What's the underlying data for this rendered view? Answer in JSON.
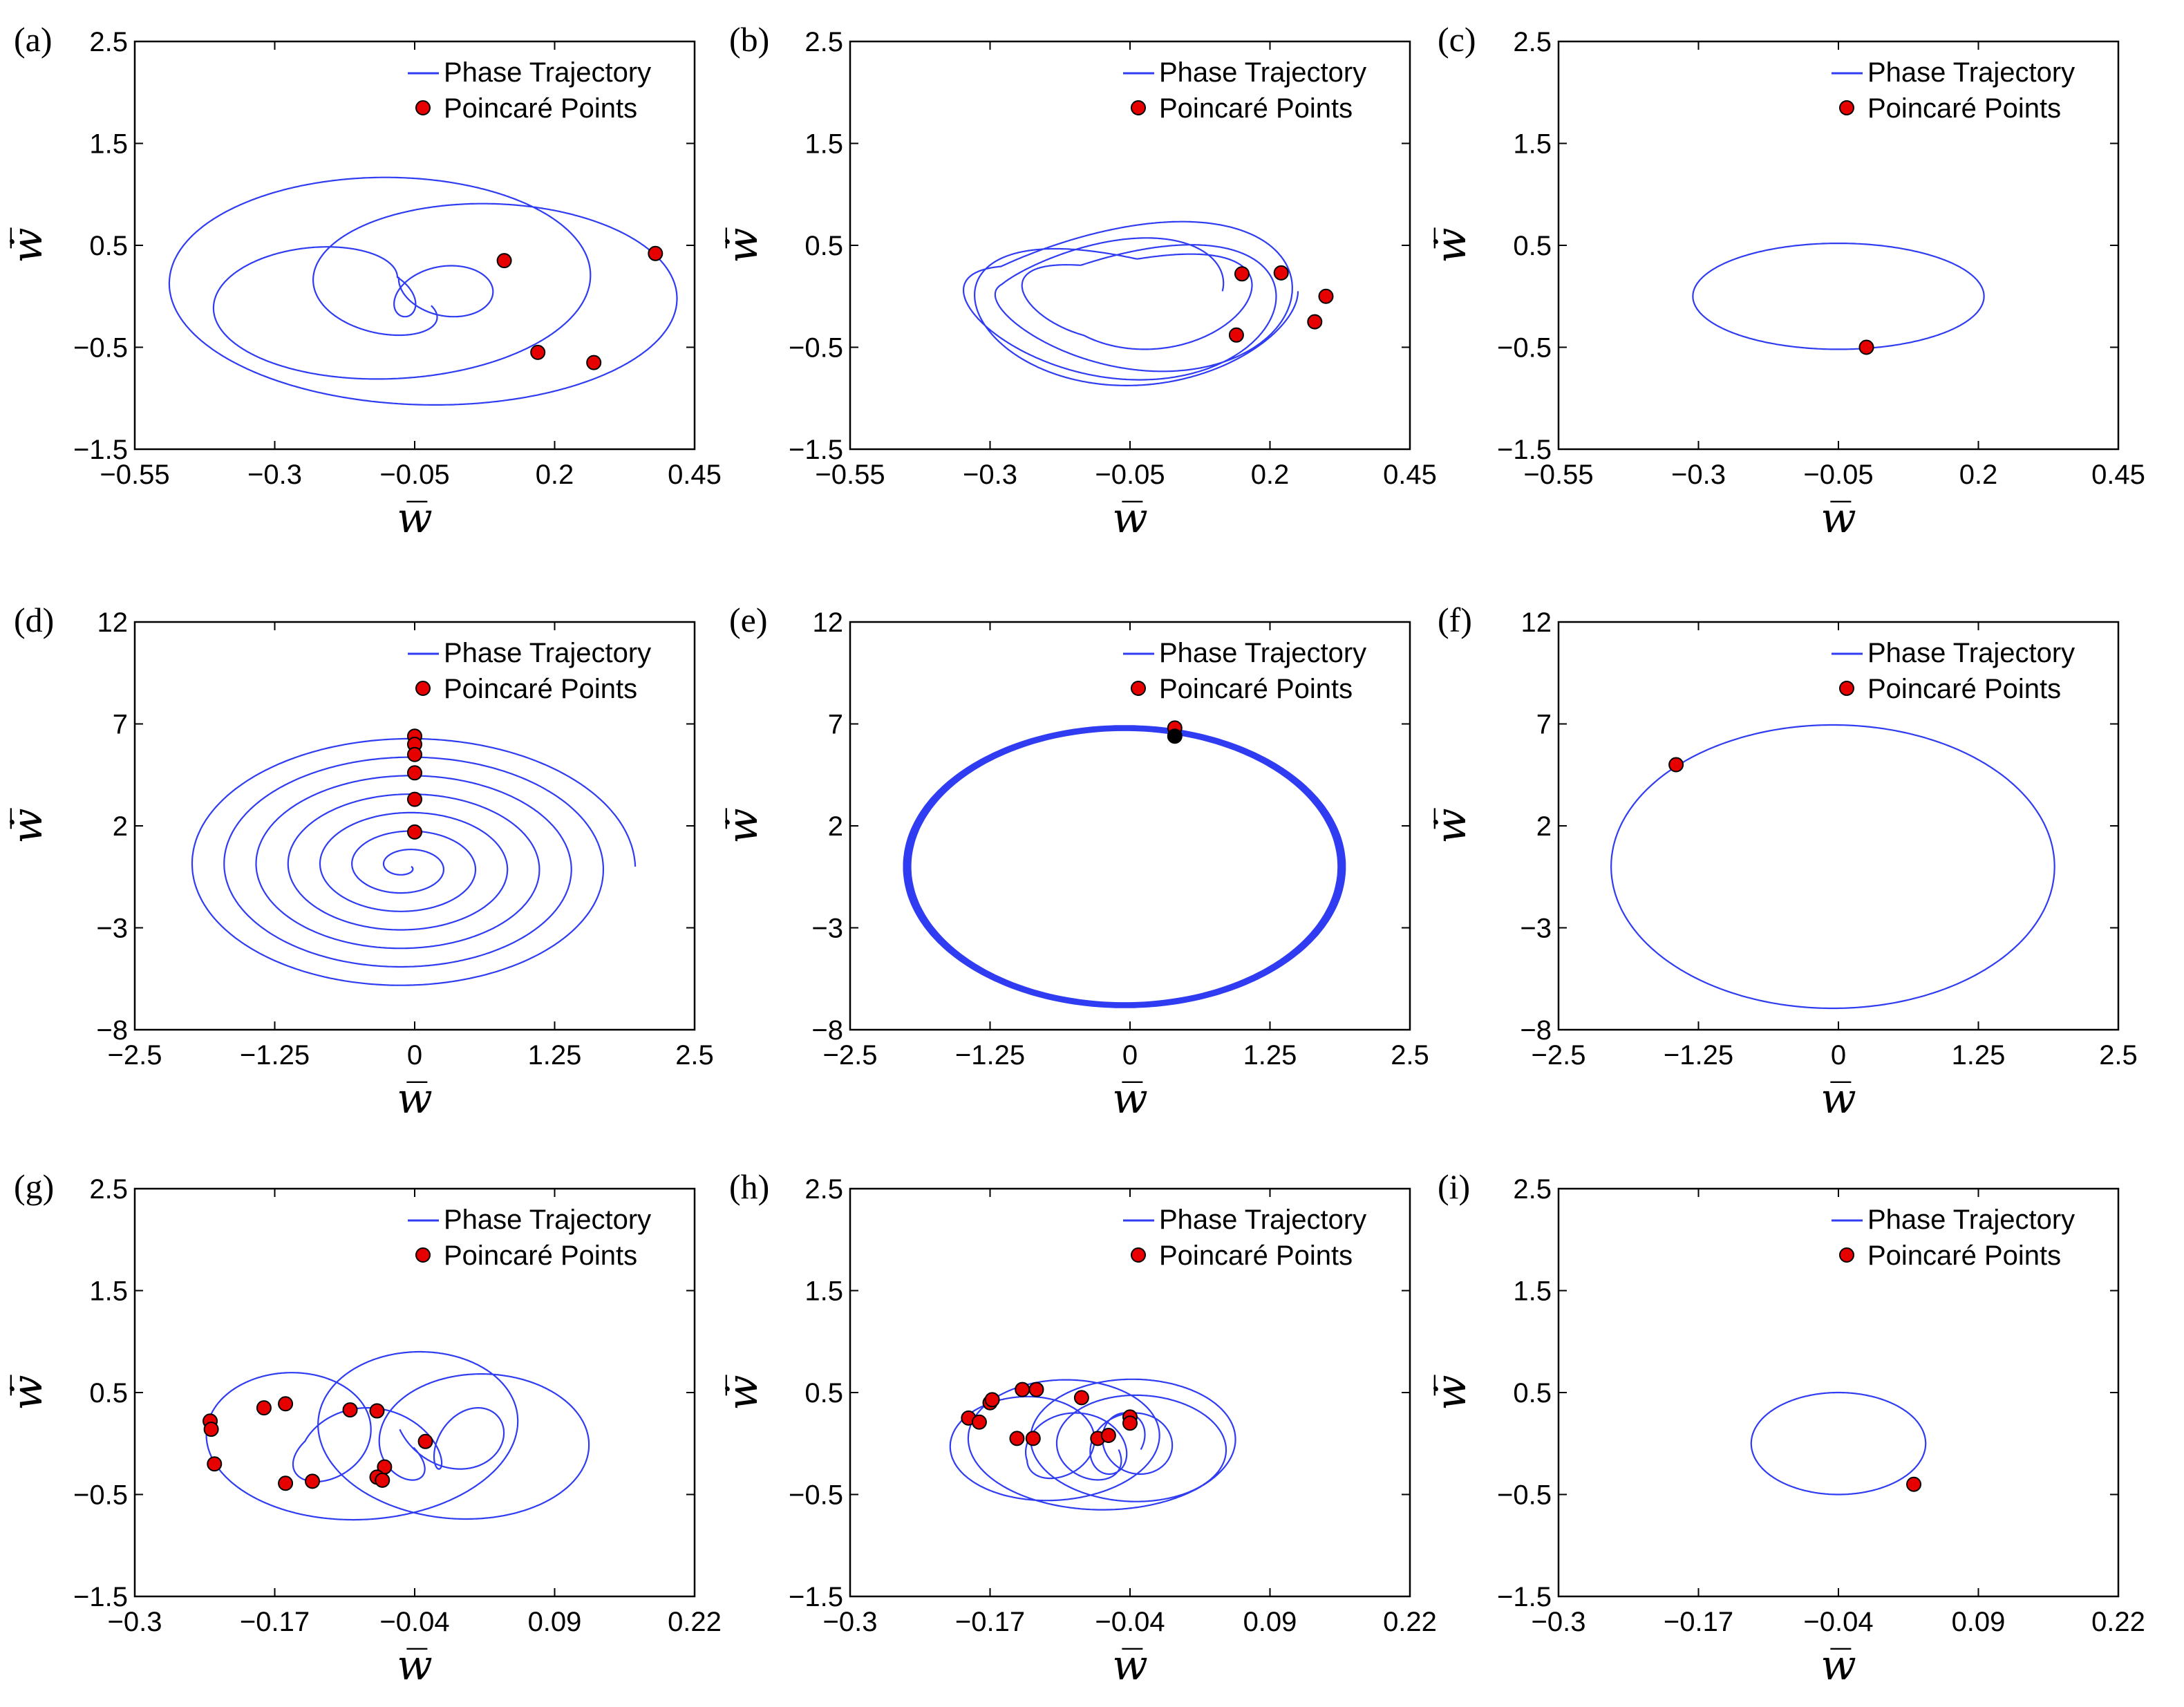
{
  "chart_data": [
    {
      "type": "line",
      "panel_label": "(a)",
      "xlabel": "w̅",
      "ylabel": "ẇ̅",
      "xlim": [
        -0.55,
        0.45
      ],
      "ylim": [
        -1.5,
        2.5
      ],
      "xticks": [
        "−0.55",
        "−0.3",
        "−0.05",
        "0.2",
        "0.45"
      ],
      "yticks": [
        "−1.5",
        "−0.5",
        "0.5",
        "1.5",
        "2.5"
      ],
      "legend": [
        "Phase Trajectory",
        "Poincaré Points"
      ],
      "legend_position": "top-right",
      "trajectory": {
        "kind": "drift",
        "cx0": -0.17,
        "cx1": 0.03,
        "ax0": 0.06,
        "ax1": 0.45,
        "ay0": 0.25,
        "ay1": 1.15,
        "turns": 4.5,
        "phase": 0.6,
        "cy": 0.05
      },
      "poincare_points": [
        [
          0.11,
          0.35
        ],
        [
          0.38,
          0.42
        ],
        [
          0.17,
          -0.55
        ],
        [
          0.27,
          -0.65
        ]
      ]
    },
    {
      "type": "line",
      "panel_label": "(b)",
      "xlabel": "w̅",
      "ylabel": "ẇ̅",
      "xlim": [
        -0.55,
        0.45
      ],
      "ylim": [
        -1.5,
        2.5
      ],
      "xticks": [
        "−0.55",
        "−0.3",
        "−0.05",
        "0.2",
        "0.45"
      ],
      "yticks": [
        "−1.5",
        "−0.5",
        "0.5",
        "1.5",
        "2.5"
      ],
      "legend": [
        "Phase Trajectory",
        "Poincaré Points"
      ],
      "legend_position": "top-right",
      "trajectory": {
        "kind": "figure8",
        "cx": -0.05,
        "cy": 0.05,
        "ax": 0.3,
        "ay": 0.95,
        "loops": 4
      },
      "poincare_points": [
        [
          0.15,
          0.22
        ],
        [
          0.22,
          0.23
        ],
        [
          0.3,
          0.0
        ],
        [
          0.28,
          -0.25
        ],
        [
          0.14,
          -0.38
        ]
      ]
    },
    {
      "type": "line",
      "panel_label": "(c)",
      "xlabel": "w̅",
      "ylabel": "ẇ̅",
      "xlim": [
        -0.55,
        0.45
      ],
      "ylim": [
        -1.5,
        2.5
      ],
      "xticks": [
        "−0.55",
        "−0.3",
        "−0.05",
        "0.2",
        "0.45"
      ],
      "yticks": [
        "−1.5",
        "−0.5",
        "0.5",
        "1.5",
        "2.5"
      ],
      "legend": [
        "Phase Trajectory",
        "Poincaré Points"
      ],
      "legend_position": "top-right",
      "trajectory": {
        "kind": "ellipse",
        "cx": -0.05,
        "cy": 0.0,
        "ax": 0.26,
        "ay": 0.52
      },
      "poincare_points": [
        [
          0.0,
          -0.5
        ]
      ]
    },
    {
      "type": "line",
      "panel_label": "(d)",
      "xlabel": "w̅",
      "ylabel": "ẇ̅",
      "xlim": [
        -2.5,
        2.5
      ],
      "ylim": [
        -8,
        12
      ],
      "xticks": [
        "−2.5",
        "−1.25",
        "0",
        "1.25",
        "2.5"
      ],
      "yticks": [
        "−8",
        "−3",
        "2",
        "7",
        "12"
      ],
      "legend": [
        "Phase Trajectory",
        "Poincaré Points"
      ],
      "legend_position": "top-right",
      "trajectory": {
        "kind": "spiral",
        "cx": -0.08,
        "cy": 0.0,
        "rx0": 0.05,
        "rx1": 2.05,
        "ry0": 0.15,
        "ry1": 6.5,
        "turns": 7
      },
      "poincare_points": [
        [
          0.0,
          6.4
        ],
        [
          0.0,
          6.0
        ],
        [
          0.0,
          5.5
        ],
        [
          0.0,
          4.6
        ],
        [
          0.0,
          3.3
        ],
        [
          0.0,
          1.7
        ]
      ]
    },
    {
      "type": "line",
      "panel_label": "(e)",
      "xlabel": "w̅",
      "ylabel": "ẇ̅",
      "xlim": [
        -2.5,
        2.5
      ],
      "ylim": [
        -8,
        12
      ],
      "xticks": [
        "−2.5",
        "−1.25",
        "0",
        "1.25",
        "2.5"
      ],
      "yticks": [
        "−8",
        "−3",
        "2",
        "7",
        "12"
      ],
      "legend": [
        "Phase Trajectory",
        "Poincaré Points"
      ],
      "legend_position": "top-right",
      "trajectory": {
        "kind": "band",
        "cx": -0.05,
        "cy": 0.0,
        "ax": 1.97,
        "ay": 6.9,
        "count": 6
      },
      "poincare_points": [
        [
          0.4,
          6.8
        ],
        [
          0.4,
          6.4
        ]
      ]
    },
    {
      "type": "line",
      "panel_label": "(f)",
      "xlabel": "w̅",
      "ylabel": "ẇ̅",
      "xlim": [
        -2.5,
        2.5
      ],
      "ylim": [
        -8,
        12
      ],
      "xticks": [
        "−2.5",
        "−1.25",
        "0",
        "1.25",
        "2.5"
      ],
      "yticks": [
        "−8",
        "−3",
        "2",
        "7",
        "12"
      ],
      "legend": [
        "Phase Trajectory",
        "Poincaré Points"
      ],
      "legend_position": "top-right",
      "trajectory": {
        "kind": "ellipse",
        "cx": -0.05,
        "cy": 0.0,
        "ax": 1.98,
        "ay": 6.95
      },
      "poincare_points": [
        [
          -1.45,
          5.0
        ]
      ]
    },
    {
      "type": "line",
      "panel_label": "(g)",
      "xlabel": "w̅",
      "ylabel": "ẇ̅",
      "xlim": [
        -0.3,
        0.22
      ],
      "ylim": [
        -1.5,
        2.5
      ],
      "xticks": [
        "−0.3",
        "−0.17",
        "−0.04",
        "0.09",
        "0.22"
      ],
      "yticks": [
        "−1.5",
        "−0.5",
        "0.5",
        "1.5",
        "2.5"
      ],
      "legend": [
        "Phase Trajectory",
        "Poincaré Points"
      ],
      "legend_position": "top-right",
      "trajectory": {
        "kind": "drift",
        "cx0": -0.15,
        "cx1": 0.02,
        "ax0": 0.025,
        "ax1": 0.125,
        "ay0": 0.3,
        "ay1": 0.85,
        "turns": 5.5,
        "phase": 0.3,
        "cy": 0.05
      },
      "poincare_points": [
        [
          -0.23,
          0.22
        ],
        [
          -0.229,
          0.14
        ],
        [
          -0.226,
          -0.2
        ],
        [
          -0.18,
          0.35
        ],
        [
          -0.16,
          0.39
        ],
        [
          -0.1,
          0.33
        ],
        [
          -0.075,
          0.32
        ],
        [
          -0.03,
          0.02
        ],
        [
          -0.16,
          -0.39
        ],
        [
          -0.135,
          -0.37
        ],
        [
          -0.068,
          -0.23
        ],
        [
          -0.075,
          -0.33
        ],
        [
          -0.07,
          -0.36
        ]
      ]
    },
    {
      "type": "line",
      "panel_label": "(h)",
      "xlabel": "w̅",
      "ylabel": "ẇ̅",
      "xlim": [
        -0.3,
        0.22
      ],
      "ylim": [
        -1.5,
        2.5
      ],
      "xticks": [
        "−0.3",
        "−0.17",
        "−0.04",
        "0.09",
        "0.22"
      ],
      "yticks": [
        "−1.5",
        "−0.5",
        "0.5",
        "1.5",
        "2.5"
      ],
      "legend": [
        "Phase Trajectory",
        "Poincaré Points"
      ],
      "legend_position": "top-right",
      "trajectory": {
        "kind": "drift",
        "cx0": -0.13,
        "cx1": -0.03,
        "ax0": 0.03,
        "ax1": 0.11,
        "ay0": 0.3,
        "ay1": 0.65,
        "turns": 7,
        "phase": 0.2,
        "cy": 0.0
      },
      "poincare_points": [
        [
          -0.19,
          0.25
        ],
        [
          -0.18,
          0.21
        ],
        [
          -0.17,
          0.4
        ],
        [
          -0.168,
          0.43
        ],
        [
          -0.14,
          0.53
        ],
        [
          -0.127,
          0.53
        ],
        [
          -0.145,
          0.05
        ],
        [
          -0.13,
          0.05
        ],
        [
          -0.085,
          0.45
        ],
        [
          -0.07,
          0.05
        ],
        [
          -0.06,
          0.08
        ],
        [
          -0.04,
          0.26
        ],
        [
          -0.04,
          0.2
        ]
      ]
    },
    {
      "type": "line",
      "panel_label": "(i)",
      "xlabel": "w̅",
      "ylabel": "ẇ̅",
      "xlim": [
        -0.3,
        0.22
      ],
      "ylim": [
        -1.5,
        2.5
      ],
      "xticks": [
        "−0.3",
        "−0.17",
        "−0.04",
        "0.09",
        "0.22"
      ],
      "yticks": [
        "−1.5",
        "−0.5",
        "0.5",
        "1.5",
        "2.5"
      ],
      "legend": [
        "Phase Trajectory",
        "Poincaré Points"
      ],
      "legend_position": "top-right",
      "trajectory": {
        "kind": "ellipse",
        "cx": -0.04,
        "cy": 0.0,
        "ax": 0.081,
        "ay": 0.5
      },
      "poincare_points": [
        [
          0.03,
          -0.4
        ]
      ]
    }
  ],
  "colors": {
    "trajectory": "#2f3cf2",
    "poincare_fill": "#e60000",
    "poincare_edge": "#000000",
    "axes": "#000000"
  }
}
